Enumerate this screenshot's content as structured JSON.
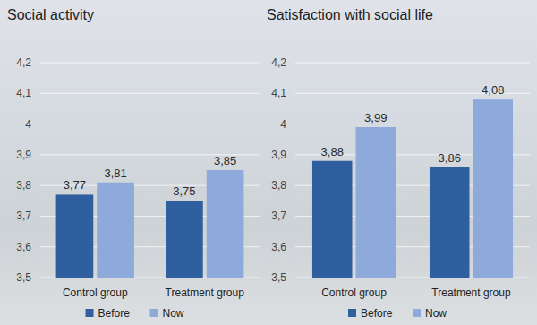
{
  "chart_data": [
    {
      "type": "bar",
      "title": "Social activity",
      "categories": [
        "Control group",
        "Treatment group"
      ],
      "series": [
        {
          "name": "Before",
          "color": "#2f5f9e",
          "values": [
            3.77,
            3.75
          ],
          "value_labels": [
            "3,77",
            "3,75"
          ]
        },
        {
          "name": "Now",
          "color": "#8eaadb",
          "values": [
            3.81,
            3.85
          ],
          "value_labels": [
            "3,81",
            "3,85"
          ]
        }
      ],
      "ylim": [
        3.5,
        4.2
      ],
      "yticks": [
        {
          "value": 3.5,
          "label": "3,5"
        },
        {
          "value": 3.6,
          "label": "3,6"
        },
        {
          "value": 3.7,
          "label": "3,7"
        },
        {
          "value": 3.8,
          "label": "3,8"
        },
        {
          "value": 3.9,
          "label": "3,9"
        },
        4,
        {
          "value": 4.1,
          "label": "4,1"
        },
        {
          "value": 4.2,
          "label": "4,2"
        }
      ],
      "grid": true,
      "data_labels": true,
      "legend": "bottom"
    },
    {
      "type": "bar",
      "title": "Satisfaction with social life",
      "categories": [
        "Control group",
        "Treatment group"
      ],
      "series": [
        {
          "name": "Before",
          "color": "#2f5f9e",
          "values": [
            3.88,
            3.86
          ],
          "value_labels": [
            "3,88",
            "3,86"
          ]
        },
        {
          "name": "Now",
          "color": "#8eaadb",
          "values": [
            3.99,
            4.08
          ],
          "value_labels": [
            "3,99",
            "4,08"
          ]
        }
      ],
      "ylim": [
        3.5,
        4.2
      ],
      "yticks": [
        {
          "value": 3.5,
          "label": "3,5"
        },
        {
          "value": 3.6,
          "label": "3,6"
        },
        {
          "value": 3.7,
          "label": "3,7"
        },
        {
          "value": 3.8,
          "label": "3,8"
        },
        {
          "value": 3.9,
          "label": "3,9"
        },
        4,
        {
          "value": 4.1,
          "label": "4,1"
        },
        {
          "value": 4.2,
          "label": "4,2"
        }
      ],
      "grid": true,
      "data_labels": true,
      "legend": "bottom"
    }
  ]
}
